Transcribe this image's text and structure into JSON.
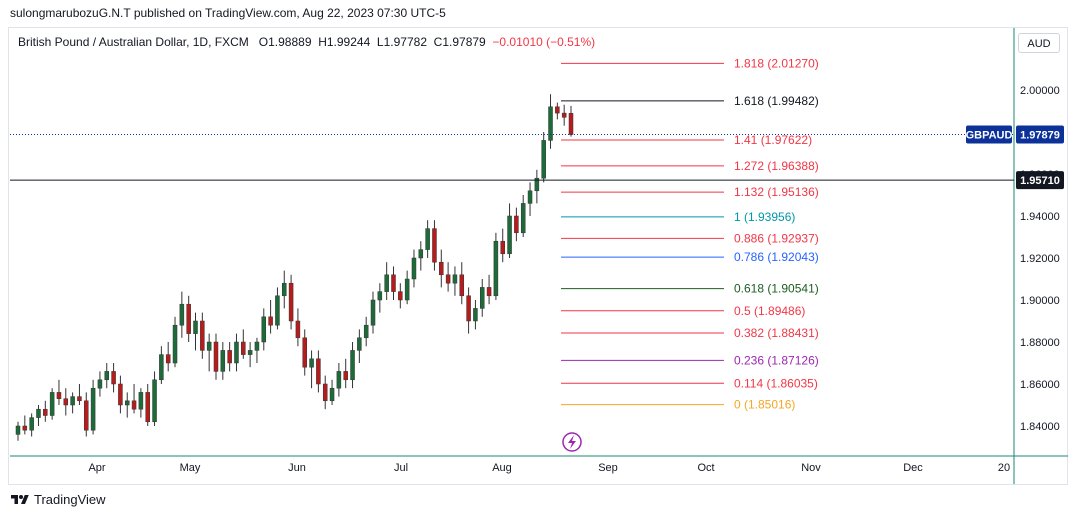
{
  "header": {
    "published": "sulongmarubozuG.N.T published on TradingView.com, Aug 22, 2023 07:30 UTC-5"
  },
  "legend": {
    "symbol": "British Pound / Australian Dollar, 1D, FXCM",
    "open_label": "O",
    "open": "1.98889",
    "high_label": "H",
    "high": "1.99244",
    "low_label": "L",
    "low": "1.97782",
    "close_label": "C",
    "close": "1.97879",
    "change": "−0.01010 (−0.51%)"
  },
  "currency_button": "AUD",
  "footer": {
    "brand": "TradingView"
  },
  "chart_data": {
    "type": "candlestick",
    "symbol": "GBPAUD",
    "ylim": [
      1.827,
      2.015
    ],
    "y_ticks": [
      "2.00000",
      "1.96000",
      "1.94000",
      "1.92000",
      "1.90000",
      "1.88000",
      "1.86000",
      "1.84000"
    ],
    "x_ticks": [
      "Apr",
      "May",
      "Jun",
      "Jul",
      "Aug",
      "Sep",
      "Oct",
      "Nov",
      "Dec",
      "20"
    ],
    "last_price": {
      "label": "GBPAUD",
      "value": "1.97879",
      "color": "#0c3299"
    },
    "horizontal_line": {
      "value": "1.95710",
      "color": "#131722"
    },
    "fib_levels": [
      {
        "label": "1.818 (2.01270)",
        "value": 2.0127,
        "color": "#f23645"
      },
      {
        "label": "1.618 (1.99482)",
        "value": 1.99482,
        "color": "#131722"
      },
      {
        "label": "1.41 (1.97622)",
        "value": 1.97622,
        "color": "#f23645"
      },
      {
        "label": "1.272 (1.96388)",
        "value": 1.96388,
        "color": "#f23645"
      },
      {
        "label": "1.132 (1.95136)",
        "value": 1.95136,
        "color": "#f23645"
      },
      {
        "label": "1 (1.93956)",
        "value": 1.93956,
        "color": "#0097a7"
      },
      {
        "label": "0.886 (1.92937)",
        "value": 1.92937,
        "color": "#f23645"
      },
      {
        "label": "0.786 (1.92043)",
        "value": 1.92043,
        "color": "#2962ff"
      },
      {
        "label": "0.618 (1.90541)",
        "value": 1.90541,
        "color": "#1b5e20"
      },
      {
        "label": "0.5 (1.89486)",
        "value": 1.89486,
        "color": "#f23645"
      },
      {
        "label": "0.382 (1.88431)",
        "value": 1.88431,
        "color": "#f23645"
      },
      {
        "label": "0.236 (1.87126)",
        "value": 1.87126,
        "color": "#9c27b0"
      },
      {
        "label": "0.114 (1.86035)",
        "value": 1.86035,
        "color": "#f23645"
      },
      {
        "label": "0 (1.85016)",
        "value": 1.85016,
        "color": "#f5a623"
      }
    ],
    "candles": [
      [
        1.836,
        1.842,
        1.833,
        1.84
      ],
      [
        1.84,
        1.845,
        1.836,
        1.838
      ],
      [
        1.838,
        1.846,
        1.835,
        1.844
      ],
      [
        1.844,
        1.85,
        1.84,
        1.848
      ],
      [
        1.848,
        1.852,
        1.842,
        1.845
      ],
      [
        1.845,
        1.858,
        1.843,
        1.856
      ],
      [
        1.856,
        1.862,
        1.85,
        1.853
      ],
      [
        1.853,
        1.858,
        1.845,
        1.85
      ],
      [
        1.85,
        1.856,
        1.846,
        1.854
      ],
      [
        1.854,
        1.86,
        1.85,
        1.852
      ],
      [
        1.852,
        1.856,
        1.835,
        1.838
      ],
      [
        1.838,
        1.862,
        1.836,
        1.858
      ],
      [
        1.858,
        1.866,
        1.854,
        1.862
      ],
      [
        1.862,
        1.87,
        1.858,
        1.866
      ],
      [
        1.866,
        1.87,
        1.856,
        1.86
      ],
      [
        1.86,
        1.864,
        1.846,
        1.85
      ],
      [
        1.85,
        1.856,
        1.844,
        1.852
      ],
      [
        1.852,
        1.86,
        1.846,
        1.848
      ],
      [
        1.848,
        1.858,
        1.844,
        1.856
      ],
      [
        1.856,
        1.86,
        1.84,
        1.842
      ],
      [
        1.842,
        1.866,
        1.84,
        1.862
      ],
      [
        1.862,
        1.878,
        1.86,
        1.874
      ],
      [
        1.874,
        1.88,
        1.866,
        1.87
      ],
      [
        1.87,
        1.892,
        1.868,
        1.888
      ],
      [
        1.888,
        1.904,
        1.882,
        1.898
      ],
      [
        1.898,
        1.902,
        1.88,
        1.884
      ],
      [
        1.884,
        1.894,
        1.876,
        1.89
      ],
      [
        1.89,
        1.894,
        1.872,
        1.876
      ],
      [
        1.876,
        1.884,
        1.866,
        1.88
      ],
      [
        1.88,
        1.884,
        1.862,
        1.866
      ],
      [
        1.866,
        1.88,
        1.862,
        1.876
      ],
      [
        1.876,
        1.88,
        1.866,
        1.87
      ],
      [
        1.87,
        1.884,
        1.866,
        1.88
      ],
      [
        1.88,
        1.886,
        1.872,
        1.874
      ],
      [
        1.874,
        1.88,
        1.868,
        1.876
      ],
      [
        1.876,
        1.882,
        1.87,
        1.88
      ],
      [
        1.88,
        1.896,
        1.876,
        1.892
      ],
      [
        1.892,
        1.9,
        1.884,
        1.888
      ],
      [
        1.888,
        1.906,
        1.886,
        1.902
      ],
      [
        1.902,
        1.914,
        1.896,
        1.908
      ],
      [
        1.908,
        1.912,
        1.886,
        1.89
      ],
      [
        1.89,
        1.896,
        1.878,
        1.882
      ],
      [
        1.882,
        1.886,
        1.864,
        1.868
      ],
      [
        1.868,
        1.876,
        1.858,
        1.872
      ],
      [
        1.872,
        1.876,
        1.856,
        1.86
      ],
      [
        1.86,
        1.864,
        1.848,
        1.852
      ],
      [
        1.852,
        1.862,
        1.85,
        1.858
      ],
      [
        1.858,
        1.87,
        1.854,
        1.866
      ],
      [
        1.866,
        1.872,
        1.858,
        1.862
      ],
      [
        1.862,
        1.88,
        1.858,
        1.876
      ],
      [
        1.876,
        1.886,
        1.87,
        1.882
      ],
      [
        1.882,
        1.892,
        1.878,
        1.888
      ],
      [
        1.888,
        1.904,
        1.884,
        1.9
      ],
      [
        1.9,
        1.908,
        1.894,
        1.904
      ],
      [
        1.904,
        1.918,
        1.9,
        1.912
      ],
      [
        1.912,
        1.916,
        1.9,
        1.904
      ],
      [
        1.904,
        1.908,
        1.896,
        1.9
      ],
      [
        1.9,
        1.914,
        1.898,
        1.91
      ],
      [
        1.91,
        1.924,
        1.906,
        1.92
      ],
      [
        1.92,
        1.928,
        1.914,
        1.924
      ],
      [
        1.924,
        1.938,
        1.92,
        1.934
      ],
      [
        1.934,
        1.938,
        1.914,
        1.918
      ],
      [
        1.918,
        1.924,
        1.906,
        1.912
      ],
      [
        1.912,
        1.918,
        1.904,
        1.908
      ],
      [
        1.908,
        1.916,
        1.902,
        1.912
      ],
      [
        1.912,
        1.918,
        1.898,
        1.902
      ],
      [
        1.902,
        1.906,
        1.884,
        1.89
      ],
      [
        1.89,
        1.9,
        1.886,
        1.896
      ],
      [
        1.896,
        1.91,
        1.892,
        1.906
      ],
      [
        1.906,
        1.912,
        1.898,
        1.902
      ],
      [
        1.902,
        1.932,
        1.9,
        1.928
      ],
      [
        1.928,
        1.934,
        1.918,
        1.922
      ],
      [
        1.922,
        1.946,
        1.92,
        1.94
      ],
      [
        1.94,
        1.944,
        1.928,
        1.932
      ],
      [
        1.932,
        1.95,
        1.93,
        1.946
      ],
      [
        1.946,
        1.956,
        1.94,
        1.952
      ],
      [
        1.952,
        1.962,
        1.946,
        1.958
      ],
      [
        1.958,
        1.98,
        1.956,
        1.976
      ],
      [
        1.976,
        1.998,
        1.972,
        1.992
      ],
      [
        1.992,
        1.994,
        1.986,
        1.989
      ],
      [
        1.989,
        1.993,
        1.983,
        1.987
      ],
      [
        1.98889,
        1.99244,
        1.97782,
        1.97879
      ]
    ]
  }
}
